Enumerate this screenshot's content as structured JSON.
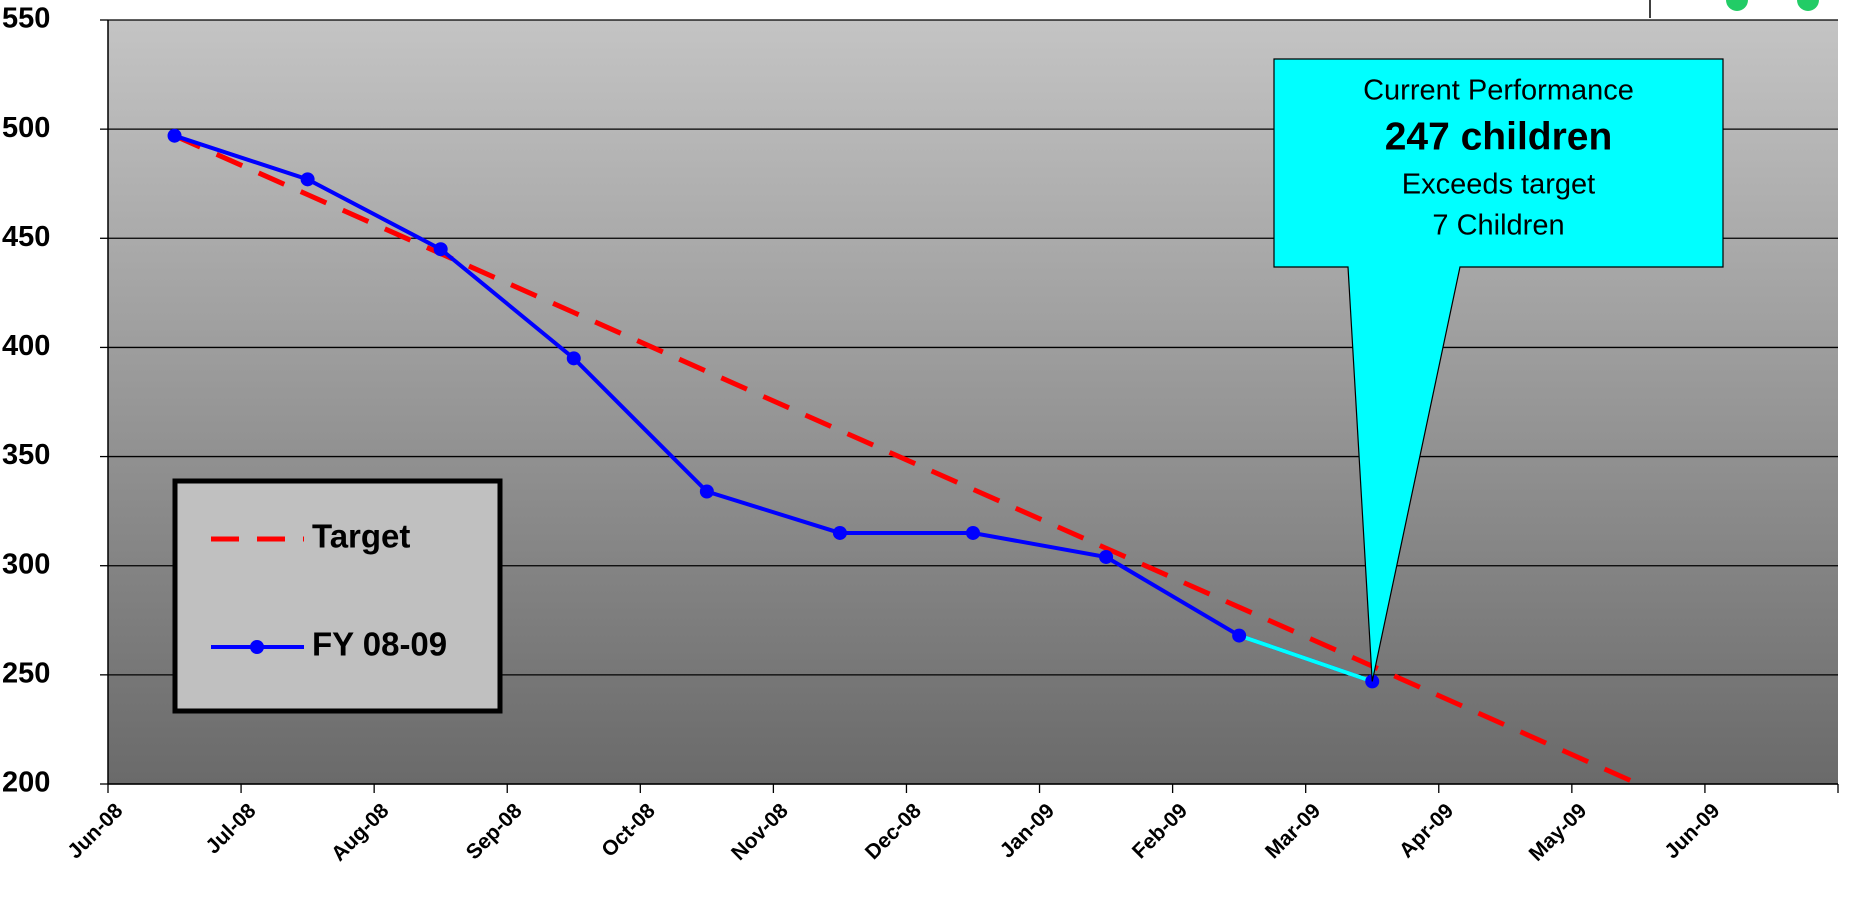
{
  "chart_data": {
    "type": "line",
    "categories": [
      "Jun-08",
      "Jul-08",
      "Aug-08",
      "Sep-08",
      "Oct-08",
      "Nov-08",
      "Dec-08",
      "Jan-09",
      "Feb-09",
      "Mar-09",
      "Apr-09",
      "May-09",
      "Jun-09"
    ],
    "series": [
      {
        "name": "Target",
        "color": "#ff0000",
        "dashed": true,
        "values": [
          497,
          470,
          443,
          416,
          389,
          362,
          335,
          308,
          281,
          254,
          227,
          200,
          null
        ]
      },
      {
        "name": "FY 08-09",
        "color": "#0000ff",
        "markers": true,
        "last_segment_color": "#00ffff",
        "values": [
          497,
          477,
          445,
          395,
          334,
          315,
          315,
          304,
          268,
          247,
          null,
          null,
          null
        ]
      }
    ],
    "ylim": [
      200,
      550
    ],
    "yticks": [
      200,
      250,
      300,
      350,
      400,
      450,
      500,
      550
    ],
    "grid": true,
    "annotation": {
      "lines": [
        "Current Performance",
        "247 children",
        "Exceeds target",
        "7 Children"
      ],
      "color": "#00ffff"
    }
  }
}
